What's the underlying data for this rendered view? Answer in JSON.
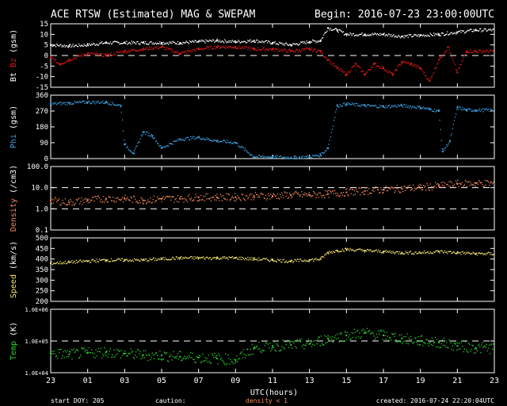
{
  "header": {
    "title": "ACE RTSW (Estimated) MAG & SWEPAM",
    "begin": "Begin: 2016-07-23 23:00:00UTC"
  },
  "footer": {
    "start_doy": "start DOY: 205",
    "caution": "caution:",
    "caution_note": "density < 1",
    "created": "created: 2016-07-24 22:20:04UTC"
  },
  "colors": {
    "bt": "#ffffff",
    "bz": "#e01818",
    "phi": "#3aa0e0",
    "density": "#f08a5a",
    "speed": "#f0e06a",
    "temp": "#2ad02a",
    "caution": "#f08a5a"
  },
  "chart_data": {
    "type": "scatter",
    "xlabel": "UTC(hours)",
    "x_ticks": [
      "23",
      "01",
      "03",
      "05",
      "07",
      "09",
      "11",
      "13",
      "15",
      "17",
      "19",
      "21",
      "23"
    ],
    "x_range_hours": [
      0,
      24
    ],
    "panels": [
      {
        "id": "mag",
        "ylabel_parts": [
          {
            "text": "Bt",
            "color": "#ffffff"
          },
          {
            "text": " Bz",
            "color": "#e01818"
          },
          {
            "text": " (gsm)",
            "color": "#ffffff"
          }
        ],
        "ylim": [
          -15,
          15
        ],
        "yticks": [
          "15",
          "10",
          "5",
          "0",
          "-5",
          "-10",
          "-15"
        ],
        "ytick_values": [
          15,
          10,
          5,
          0,
          -5,
          -10,
          -15
        ],
        "dashed_lines": [
          0
        ],
        "series": [
          {
            "name": "Bt",
            "color": "#ffffff",
            "x": [
              0,
              1,
              2,
              3,
              4,
              5,
              6,
              7,
              8,
              9,
              10,
              11,
              12,
              13,
              14,
              14.6,
              15,
              15.5,
              16,
              17,
              18,
              19,
              20,
              21,
              22,
              23
            ],
            "y": [
              5,
              4.5,
              5,
              6,
              6,
              6,
              6,
              6,
              6.5,
              7,
              6.5,
              7,
              6,
              5,
              6.5,
              7,
              13,
              12,
              10,
              10,
              10,
              9,
              9.5,
              10,
              11,
              12
            ]
          },
          {
            "name": "Bz",
            "color": "#e01818",
            "x": [
              0,
              0.5,
              1,
              2,
              3,
              4,
              5,
              6,
              7,
              8,
              9,
              10,
              11,
              12,
              13,
              14,
              14.6,
              15,
              15.5,
              16,
              16.5,
              17,
              17.5,
              18,
              18.5,
              19,
              19.5,
              20,
              20.5,
              21,
              21.5,
              22,
              22.5,
              23
            ],
            "y": [
              -1,
              -4,
              -2,
              1,
              0,
              2,
              3,
              4,
              1,
              3,
              4,
              4,
              3,
              3,
              2,
              3,
              2,
              -2,
              -6,
              -9,
              -4,
              -9,
              -4,
              -6,
              -9,
              -3,
              -4,
              -6,
              -12,
              -2,
              4,
              -8,
              2,
              2
            ]
          }
        ]
      },
      {
        "id": "phi",
        "ylabel_parts": [
          {
            "text": "Phi",
            "color": "#3aa0e0"
          },
          {
            "text": " (gsm)",
            "color": "#ffffff"
          }
        ],
        "ylim": [
          0,
          360
        ],
        "yticks": [
          "360",
          "270",
          "180",
          "90",
          "0"
        ],
        "ytick_values": [
          360,
          270,
          180,
          90,
          0
        ],
        "dashed_lines": [],
        "series": [
          {
            "name": "Phi",
            "color": "#3aa0e0",
            "x": [
              0,
              1,
              2,
              3,
              3.8,
              4,
              4.5,
              5,
              5.5,
              6,
              7,
              8,
              9,
              10,
              11,
              12,
              13,
              14,
              14.6,
              15,
              15.5,
              16,
              17,
              18,
              19,
              20,
              20.5,
              21,
              21.2,
              21.6,
              22,
              22.5,
              23
            ],
            "y": [
              310,
              315,
              320,
              320,
              300,
              80,
              30,
              150,
              130,
              60,
              110,
              120,
              100,
              90,
              10,
              10,
              5,
              10,
              20,
              60,
              300,
              310,
              300,
              295,
              300,
              290,
              280,
              270,
              40,
              100,
              290,
              275,
              275
            ]
          }
        ]
      },
      {
        "id": "density",
        "ylabel_parts": [
          {
            "text": "Density",
            "color": "#f08a5a"
          },
          {
            "text": " (/cm3)",
            "color": "#ffffff"
          }
        ],
        "scale": "log",
        "ylim": [
          0.1,
          100
        ],
        "yticks": [
          "100.0",
          "10.0",
          "1.0",
          "0.1"
        ],
        "ytick_values": [
          100,
          10,
          1,
          0.1
        ],
        "dashed_lines": [
          10,
          1
        ],
        "series": [
          {
            "name": "Density",
            "color": "#f08a5a",
            "x": [
              0,
              1,
              2,
              3,
              4,
              5,
              6,
              7,
              8,
              9,
              10,
              11,
              12,
              13,
              14,
              15,
              16,
              17,
              18,
              19,
              20,
              21,
              22,
              23
            ],
            "y": [
              2.5,
              2,
              2.5,
              3,
              3,
              2.5,
              3,
              3,
              3.5,
              3.5,
              3.5,
              4,
              4,
              4.5,
              4.5,
              5,
              6,
              7,
              8,
              9,
              10,
              12,
              15,
              16
            ]
          }
        ]
      },
      {
        "id": "speed",
        "ylabel_parts": [
          {
            "text": "Speed",
            "color": "#f0e06a"
          },
          {
            "text": " (km/s)",
            "color": "#ffffff"
          }
        ],
        "ylim": [
          200,
          500
        ],
        "yticks": [
          "500",
          "450",
          "400",
          "350",
          "300",
          "250",
          "200"
        ],
        "ytick_values": [
          500,
          450,
          400,
          350,
          300,
          250,
          200
        ],
        "dashed_lines": [],
        "series": [
          {
            "name": "Speed",
            "color": "#f0e06a",
            "x": [
              0,
              1,
              2,
              3,
              4,
              5,
              6,
              7,
              8,
              9,
              10,
              11,
              12,
              13,
              14,
              14.6,
              15,
              15.5,
              16,
              17,
              18,
              19,
              20,
              21,
              22,
              23
            ],
            "y": [
              380,
              385,
              390,
              395,
              395,
              395,
              400,
              405,
              405,
              405,
              405,
              400,
              395,
              390,
              395,
              400,
              430,
              440,
              445,
              440,
              435,
              430,
              430,
              435,
              430,
              425
            ]
          }
        ]
      },
      {
        "id": "temp",
        "ylabel_parts": [
          {
            "text": "Temp",
            "color": "#2ad02a"
          },
          {
            "text": " (K)",
            "color": "#ffffff"
          }
        ],
        "scale": "log",
        "ylim": [
          10000,
          1000000
        ],
        "yticks": [
          "1.0E+06",
          "1.0E+05",
          "1.0E+04"
        ],
        "ytick_values": [
          1000000,
          100000,
          10000
        ],
        "dashed_lines": [
          100000
        ],
        "series": [
          {
            "name": "Temp",
            "color": "#2ad02a",
            "x": [
              0,
              1,
              2,
              3,
              4,
              5,
              6,
              7,
              8,
              9,
              10,
              11,
              12,
              13,
              14,
              15,
              16,
              17,
              18,
              19,
              20,
              21,
              22,
              23
            ],
            "y": [
              40000,
              38000,
              42000,
              45000,
              40000,
              36000,
              35000,
              32000,
              30000,
              28000,
              25000,
              60000,
              70000,
              75000,
              80000,
              120000,
              150000,
              180000,
              150000,
              120000,
              100000,
              90000,
              70000,
              60000
            ]
          }
        ]
      }
    ]
  }
}
